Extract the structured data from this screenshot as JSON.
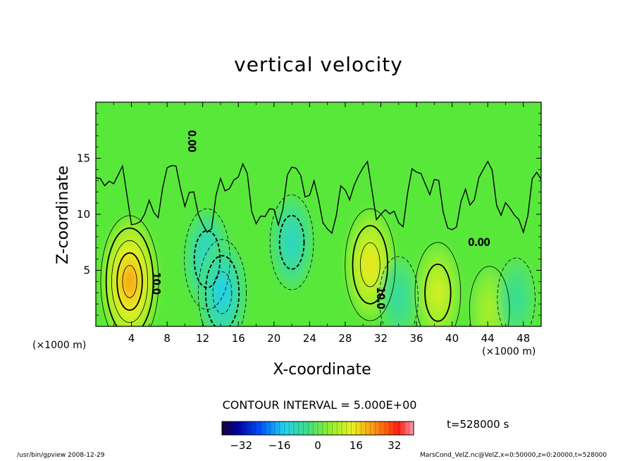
{
  "page": {
    "footer_left": "/usr/bin/gpview   2008-12-29",
    "footer_right": "MarsCond_VelZ.nc@VelZ,x=0:50000,z=0:20000,t=528000"
  },
  "chart_data": {
    "type": "heatmap",
    "title": "vertical velocity",
    "xlabel": "X-coordinate",
    "ylabel": "Z-coordinate",
    "x_multiplier_label": "(×1000 m)",
    "y_multiplier_label": "(×1000 m)",
    "xlim": [
      0,
      50
    ],
    "ylim": [
      0,
      20
    ],
    "x_ticks": [
      4,
      8,
      12,
      16,
      20,
      24,
      28,
      32,
      36,
      40,
      44,
      48
    ],
    "y_ticks": [
      5,
      10,
      15
    ],
    "contour_interval_label": "CONTOUR INTERVAL = 5.000E+00",
    "contour_labels": [
      "10.0",
      "0.00",
      "10.0",
      "0.00"
    ],
    "time_label": "t=528000 s",
    "colorbar": {
      "range": [
        -40,
        40
      ],
      "ticks": [
        -32,
        -16,
        0,
        16,
        32
      ]
    },
    "features": [
      {
        "x": 3.8,
        "z": 4.0,
        "value": 25,
        "sign": "positive"
      },
      {
        "x": 12.5,
        "z": 6.0,
        "value": -14,
        "sign": "negative"
      },
      {
        "x": 14.2,
        "z": 3.0,
        "value": -16,
        "sign": "negative"
      },
      {
        "x": 22.0,
        "z": 7.5,
        "value": -12,
        "sign": "negative"
      },
      {
        "x": 30.8,
        "z": 5.5,
        "value": 18,
        "sign": "positive"
      },
      {
        "x": 34.0,
        "z": 2.5,
        "value": -8,
        "sign": "negative"
      },
      {
        "x": 38.4,
        "z": 3.0,
        "value": 14,
        "sign": "positive"
      },
      {
        "x": 44.2,
        "z": 1.5,
        "value": 9,
        "sign": "positive"
      },
      {
        "x": 47.2,
        "z": 2.5,
        "value": -7,
        "sign": "negative"
      }
    ]
  }
}
